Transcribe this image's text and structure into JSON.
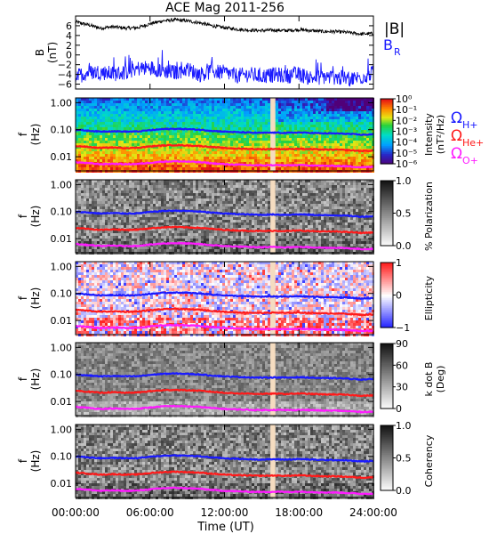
{
  "title": "ACE Mag 2011-256",
  "colors": {
    "b_total": "#000000",
    "b_r": "#1a1aff",
    "proton": "#1a1aff",
    "helium": "#ff1a1a",
    "oxygen": "#ff1aff",
    "data_gap": "#f5dcc0"
  },
  "legend": {
    "b_total": "|B|",
    "b_r": "B",
    "b_r_sub": "R",
    "omega": "Ω",
    "h": "H+",
    "he": "He+",
    "o": "O+"
  },
  "xaxis": {
    "label": "Time (UT)",
    "ticks": [
      "00:00:00",
      "06:00:00",
      "12:00:00",
      "18:00:00",
      "24:00:00"
    ],
    "tick_values_h": [
      0,
      6,
      12,
      18,
      24
    ],
    "range_h": [
      0,
      24
    ]
  },
  "chart_data": [
    {
      "type": "line",
      "name": "magnetic-field",
      "ylabel": "B",
      "yunit": "(nT)",
      "ylim": [
        -7,
        8
      ],
      "yticks": [
        "6",
        "4",
        "2",
        "0",
        "−2",
        "−4",
        "−6"
      ],
      "ytick_values": [
        6,
        4,
        2,
        0,
        -2,
        -4,
        -6
      ],
      "series": [
        {
          "name": "|B|",
          "x": [
            0,
            1,
            2,
            3,
            4,
            5,
            6,
            7,
            8,
            9,
            10,
            11,
            12,
            13,
            14,
            15,
            16,
            17,
            18,
            19,
            20,
            21,
            22,
            23,
            24
          ],
          "values": [
            6.8,
            6.2,
            5.5,
            5.8,
            5.5,
            5.6,
            6.4,
            7.0,
            7.2,
            7.0,
            6.6,
            6.0,
            5.6,
            5.3,
            5.1,
            5.0,
            5.1,
            5.0,
            5.2,
            5.0,
            4.8,
            4.8,
            4.6,
            4.3,
            4.4
          ]
        },
        {
          "name": "B",
          "x": [
            0,
            1,
            2,
            3,
            4,
            5,
            6,
            7,
            8,
            9,
            10,
            11,
            12,
            13,
            14,
            15,
            16,
            17,
            18,
            19,
            20,
            21,
            22,
            23,
            24
          ],
          "values": [
            -4.5,
            -3.6,
            -3.5,
            -3.9,
            -3.6,
            -2.8,
            -2.6,
            -3.2,
            -3.6,
            -2.9,
            -4.0,
            -3.4,
            -3.6,
            -4.3,
            -4.0,
            -4.4,
            -4.1,
            -4.3,
            -4.0,
            -4.7,
            -4.5,
            -4.6,
            -5.0,
            -4.6,
            -3.7
          ]
        }
      ]
    },
    {
      "type": "heatmap",
      "name": "intensity",
      "ylabel": "f",
      "yunit": "(Hz)",
      "colorbar_label": "Intensity",
      "colorbar_unit": "(nT²/Hz)",
      "colorbar_ticks": [
        "10⁰",
        "10⁻¹",
        "10⁻²",
        "10⁻³",
        "10⁻⁴",
        "10⁻⁵",
        "10⁻⁶"
      ],
      "colorscale": "rainbow"
    },
    {
      "type": "heatmap",
      "name": "polarization",
      "ylabel": "f",
      "yunit": "(Hz)",
      "colorbar_label": "% Polarization",
      "colorbar_ticks": [
        "1.0",
        "0.5",
        "0.0"
      ],
      "colorscale": "gray"
    },
    {
      "type": "heatmap",
      "name": "ellipticity",
      "ylabel": "f",
      "yunit": "(Hz)",
      "colorbar_label": "Ellipticity",
      "colorbar_ticks": [
        "1",
        "0",
        "−1"
      ],
      "colorscale": "bwr"
    },
    {
      "type": "heatmap",
      "name": "wave-normal-angle",
      "ylabel": "f",
      "yunit": "(Hz)",
      "colorbar_label": "k dot B",
      "colorbar_unit": "(Deg)",
      "colorbar_ticks": [
        "90",
        "60",
        "30",
        "0"
      ],
      "colorscale": "gray"
    },
    {
      "type": "heatmap",
      "name": "coherency",
      "ylabel": "f",
      "yunit": "(Hz)",
      "colorbar_label": "Coherency",
      "colorbar_ticks": [
        "1.0",
        "0.5",
        "0.0"
      ],
      "colorscale": "gray"
    }
  ],
  "freq_axis": {
    "ticks": [
      "1.00",
      "0.10",
      "0.01"
    ],
    "tick_values": [
      1.0,
      0.1,
      0.01
    ],
    "range_hz": [
      0.003,
      1.5
    ]
  },
  "gyrofrequencies": {
    "x_h": [
      0,
      1,
      2,
      3,
      4,
      5,
      6,
      7,
      8,
      9,
      10,
      11,
      12,
      13,
      14,
      15,
      16,
      17,
      18,
      19,
      20,
      21,
      22,
      23,
      24
    ],
    "h_plus_hz": [
      0.1,
      0.092,
      0.085,
      0.088,
      0.085,
      0.086,
      0.096,
      0.105,
      0.108,
      0.105,
      0.1,
      0.091,
      0.085,
      0.081,
      0.078,
      0.076,
      0.078,
      0.076,
      0.079,
      0.076,
      0.073,
      0.073,
      0.07,
      0.065,
      0.067
    ],
    "he_plus_hz": [
      0.025,
      0.023,
      0.021,
      0.022,
      0.021,
      0.0215,
      0.024,
      0.026,
      0.027,
      0.026,
      0.025,
      0.0228,
      0.021,
      0.02,
      0.0195,
      0.019,
      0.0195,
      0.019,
      0.0198,
      0.019,
      0.0183,
      0.0183,
      0.0175,
      0.0163,
      0.0168
    ],
    "o_plus_hz": [
      0.0063,
      0.0058,
      0.0053,
      0.0055,
      0.0053,
      0.0054,
      0.006,
      0.0066,
      0.0068,
      0.0066,
      0.0063,
      0.0057,
      0.0053,
      0.0051,
      0.0049,
      0.0048,
      0.0049,
      0.0048,
      0.0049,
      0.0048,
      0.0046,
      0.0046,
      0.0044,
      0.0041,
      0.0042
    ]
  },
  "data_gap_h": [
    15.7,
    16.1
  ]
}
